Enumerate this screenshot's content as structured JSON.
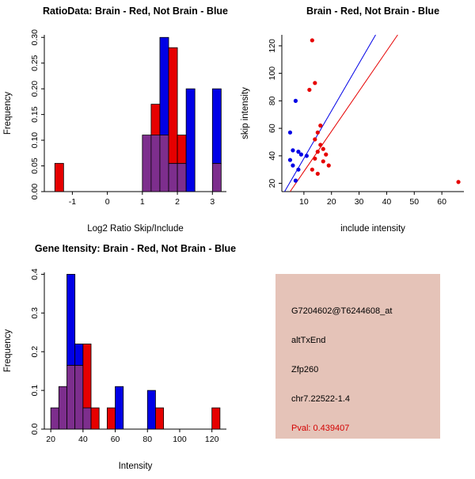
{
  "colors": {
    "red": "#e60000",
    "blue": "#0000e6",
    "overlap": "#7d2e8d",
    "axis": "#000000"
  },
  "info_panel": {
    "bg": "#e5c3b8",
    "pval_color": "#d40000",
    "lines": [
      "G7204602@T6244608_at",
      "altTxEnd",
      "Zfp260",
      "chr7.22522-1.4",
      "Pval: 0.439407"
    ]
  },
  "chart_data": [
    {
      "id": "ratio_hist",
      "type": "bar",
      "subtype": "overlay-histogram",
      "title": "RatioData: Brain - Red, Not Brain - Blue",
      "xlabel": "Log2 Ratio Skip/Include",
      "ylabel": "Frequency",
      "legend": [
        {
          "name": "Brain",
          "color": "red"
        },
        {
          "name": "Not Brain",
          "color": "blue"
        }
      ],
      "xlim": [
        -1.8,
        3.4
      ],
      "ylim": [
        0,
        0.305
      ],
      "xticks": [
        -1,
        0,
        1,
        2,
        3
      ],
      "xtick_labels": [
        "-1",
        "0",
        "1",
        "2",
        "3"
      ],
      "yticks": [
        0,
        0.05,
        0.1,
        0.15,
        0.2,
        0.25,
        0.3
      ],
      "ytick_labels": [
        "0.00",
        "0.05",
        "0.10",
        "0.15",
        "0.20",
        "0.25",
        "0.30"
      ],
      "bin_width": 0.25,
      "bins": [
        {
          "x": -1.5,
          "red": 0.055,
          "blue": 0
        },
        {
          "x": 1.0,
          "red": 0.11,
          "blue": 0.11
        },
        {
          "x": 1.25,
          "red": 0.17,
          "blue": 0.11
        },
        {
          "x": 1.5,
          "red": 0.11,
          "blue": 0.3
        },
        {
          "x": 1.75,
          "red": 0.28,
          "blue": 0.055
        },
        {
          "x": 2.0,
          "red": 0.11,
          "blue": 0.055
        },
        {
          "x": 2.25,
          "red": 0,
          "blue": 0.2
        },
        {
          "x": 3.0,
          "red": 0.055,
          "blue": 0.2
        }
      ]
    },
    {
      "id": "intensity_scatter",
      "type": "scatter",
      "title": "Brain - Red, Not Brain - Blue",
      "xlabel": "include intensity",
      "ylabel": "skip intensity",
      "xlim": [
        2,
        68
      ],
      "ylim": [
        14,
        128
      ],
      "xticks": [
        10,
        20,
        30,
        40,
        50,
        60
      ],
      "xtick_labels": [
        "10",
        "20",
        "30",
        "40",
        "50",
        "60"
      ],
      "yticks": [
        20,
        40,
        60,
        80,
        100,
        120
      ],
      "ytick_labels": [
        "20",
        "40",
        "60",
        "80",
        "100",
        "120"
      ],
      "series": [
        {
          "name": "Brain",
          "color": "red",
          "points": [
            [
              13,
              124
            ],
            [
              14,
              93
            ],
            [
              12,
              88
            ],
            [
              16,
              62
            ],
            [
              15,
              57
            ],
            [
              14,
              52
            ],
            [
              16,
              48
            ],
            [
              17,
              45
            ],
            [
              15,
              43
            ],
            [
              18,
              41
            ],
            [
              14,
              38
            ],
            [
              17,
              36
            ],
            [
              19,
              33
            ],
            [
              13,
              30
            ],
            [
              15,
              27
            ],
            [
              66,
              21
            ]
          ]
        },
        {
          "name": "Not Brain",
          "color": "blue",
          "points": [
            [
              7,
              80
            ],
            [
              5,
              57
            ],
            [
              6,
              44
            ],
            [
              8,
              43
            ],
            [
              9,
              41
            ],
            [
              11,
              40
            ],
            [
              5,
              37
            ],
            [
              6,
              33
            ],
            [
              8,
              30
            ],
            [
              7,
              22
            ]
          ]
        }
      ],
      "lines": [
        {
          "name": "not-brain-fit",
          "color": "blue",
          "x1": 3,
          "y1": 14,
          "x2": 36,
          "y2": 128
        },
        {
          "name": "brain-fit",
          "color": "red",
          "x1": 5,
          "y1": 14,
          "x2": 44,
          "y2": 128
        }
      ]
    },
    {
      "id": "gene_hist",
      "type": "bar",
      "subtype": "overlay-histogram",
      "title": "Gene Itensity: Brain - Red, Not Brain - Blue",
      "xlabel": "Intensity",
      "ylabel": "Frequency",
      "legend": [
        {
          "name": "Brain",
          "color": "red"
        },
        {
          "name": "Not Brain",
          "color": "blue"
        }
      ],
      "xlim": [
        16,
        129
      ],
      "ylim": [
        0,
        0.405
      ],
      "xticks": [
        20,
        40,
        60,
        80,
        100,
        120
      ],
      "xtick_labels": [
        "20",
        "40",
        "60",
        "80",
        "100",
        "120"
      ],
      "yticks": [
        0,
        0.1,
        0.2,
        0.3,
        0.4
      ],
      "ytick_labels": [
        "0.0",
        "0.1",
        "0.2",
        "0.3",
        "0.4"
      ],
      "bin_width": 5,
      "bins": [
        {
          "x": 20,
          "red": 0.055,
          "blue": 0.055
        },
        {
          "x": 25,
          "red": 0.11,
          "blue": 0.11
        },
        {
          "x": 30,
          "red": 0.165,
          "blue": 0.4
        },
        {
          "x": 35,
          "red": 0.165,
          "blue": 0.22
        },
        {
          "x": 40,
          "red": 0.22,
          "blue": 0.055
        },
        {
          "x": 45,
          "red": 0.055,
          "blue": 0
        },
        {
          "x": 55,
          "red": 0.055,
          "blue": 0
        },
        {
          "x": 60,
          "red": 0,
          "blue": 0.11
        },
        {
          "x": 80,
          "red": 0,
          "blue": 0.1
        },
        {
          "x": 85,
          "red": 0.055,
          "blue": 0
        },
        {
          "x": 120,
          "red": 0.055,
          "blue": 0
        }
      ]
    }
  ]
}
